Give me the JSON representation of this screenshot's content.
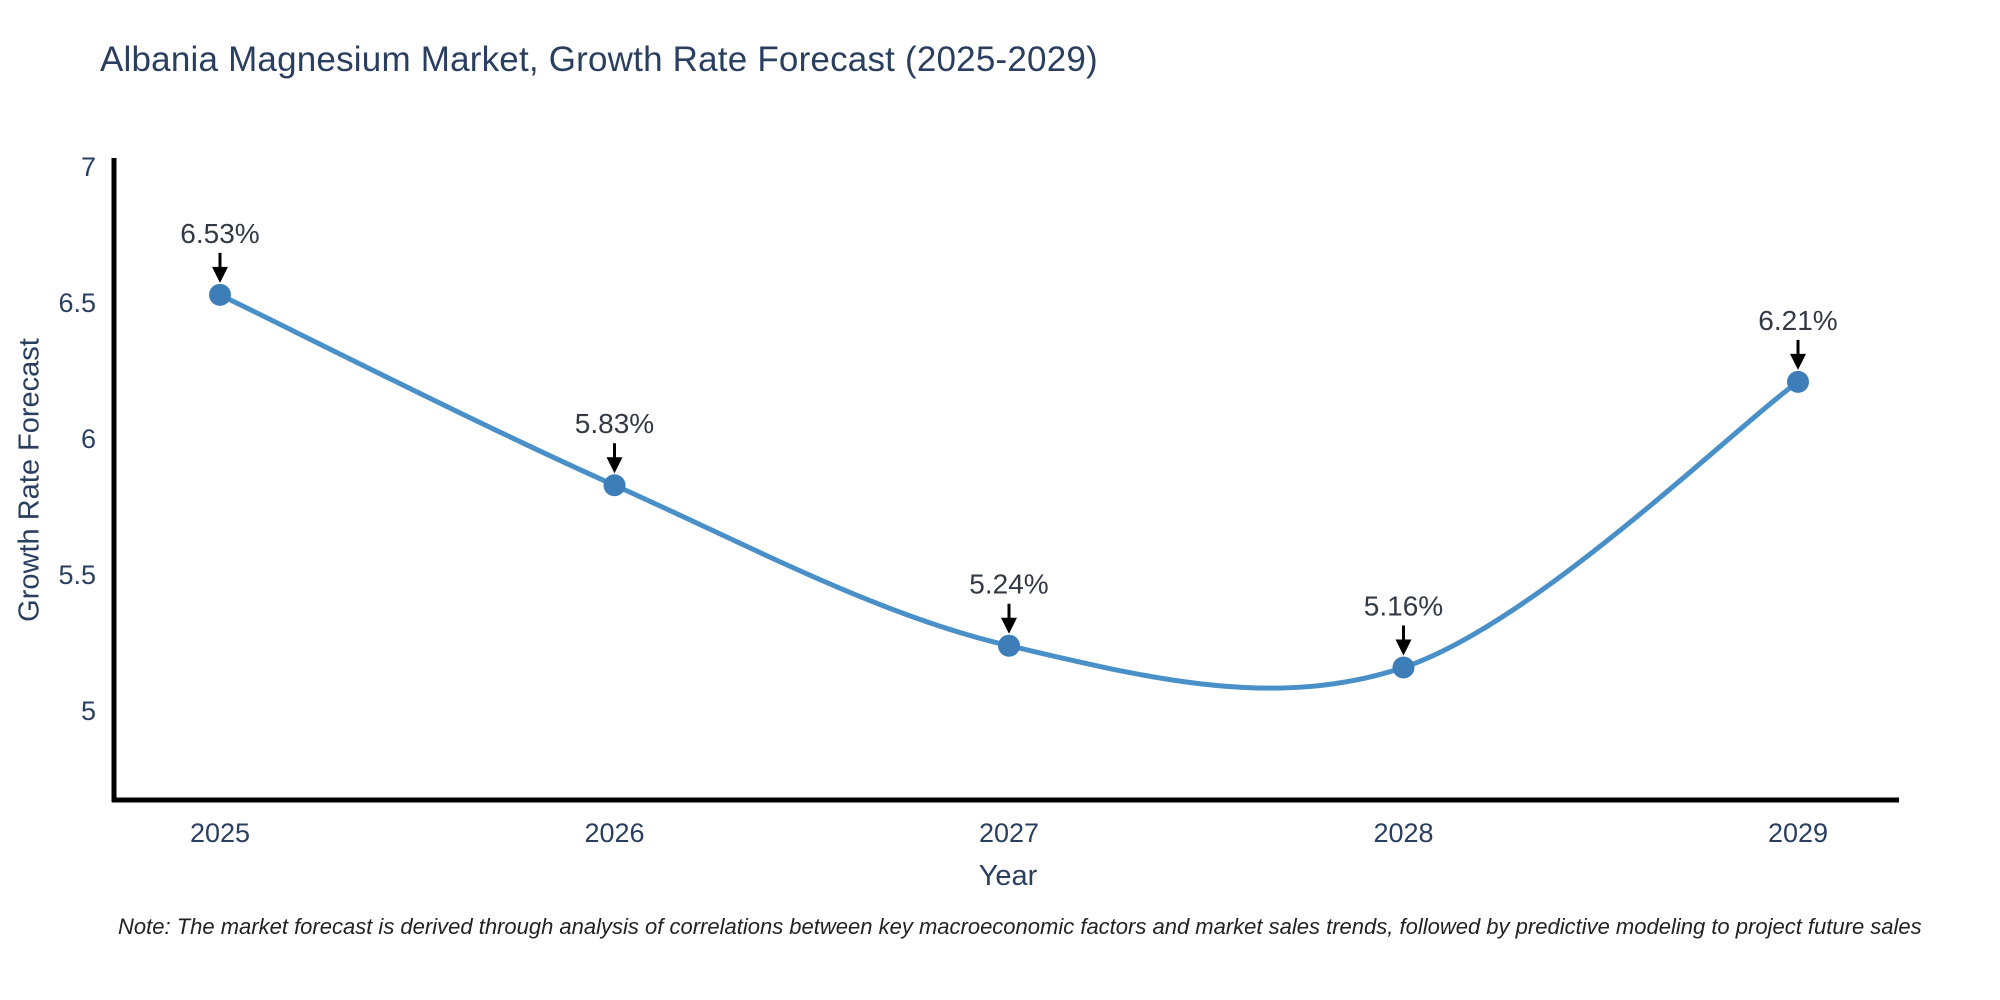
{
  "chart_data": {
    "type": "line",
    "title": "Albania Magnesium Market, Growth Rate Forecast (2025-2029)",
    "xlabel": "Year",
    "ylabel": "Growth Rate Forecast",
    "x": [
      2025,
      2026,
      2027,
      2028,
      2029
    ],
    "xticklabels": [
      "2025",
      "2026",
      "2027",
      "2028",
      "2029"
    ],
    "series": [
      {
        "name": "Growth Rate Forecast",
        "values": [
          6.53,
          5.83,
          5.24,
          5.16,
          6.21
        ]
      }
    ],
    "point_labels": [
      "6.53%",
      "5.83%",
      "5.24%",
      "5.16%",
      "6.21%"
    ],
    "yticks": [
      5,
      5.5,
      6,
      6.5,
      7
    ],
    "ytick_labels": [
      "5",
      "5.5",
      "6",
      "6.5",
      "7"
    ],
    "ylim": [
      4.67,
      7.03
    ],
    "grid": false,
    "legend": false,
    "smooth": true,
    "marker_style": "circle",
    "annotation_arrows": "down",
    "note": "Note: The market forecast is derived through analysis of correlations between key macroeconomic factors and market sales trends, followed by predictive modeling to project future sales",
    "colors": {
      "title": "#2a3f5f",
      "tick_labels": "#2a3f5f",
      "axis_line": "#000000",
      "line": "#4a90c8",
      "marker": "#3d7eb8",
      "annotation_text": "#333a45",
      "arrow": "#000000",
      "note_text": "#222222",
      "background": "#ffffff"
    }
  }
}
